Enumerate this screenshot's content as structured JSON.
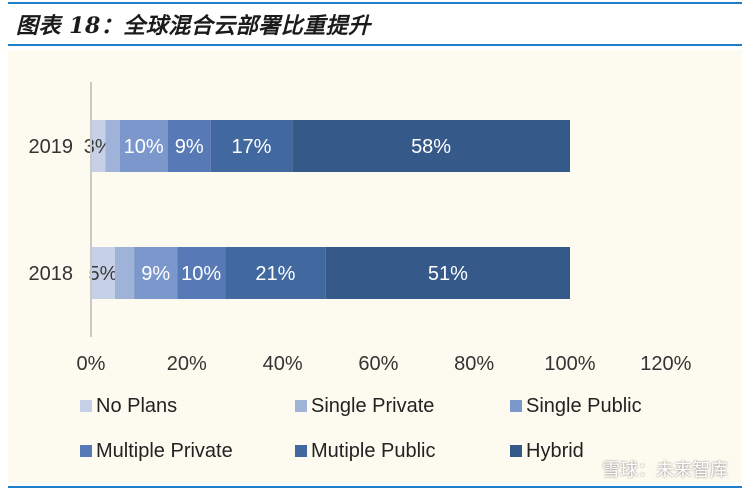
{
  "header": {
    "title": "图表 18：全球混合云部署比重提升"
  },
  "colors": {
    "accent": "#1f7fc8",
    "background": "#fdfbef",
    "axis": "#c8c8c8",
    "series": [
      "#c6d0e6",
      "#9fb2d8",
      "#7b97cc",
      "#5779b6",
      "#42699f",
      "#355a8a"
    ]
  },
  "chart_data": {
    "type": "bar",
    "orientation": "horizontal",
    "stacked": true,
    "title": "",
    "xlabel": "",
    "ylabel": "",
    "categories": [
      "2019",
      "2018"
    ],
    "series": [
      {
        "name": "No Plans",
        "values": [
          3,
          5
        ]
      },
      {
        "name": "Single Private",
        "values": [
          3,
          4
        ]
      },
      {
        "name": "Single Public",
        "values": [
          10,
          9
        ]
      },
      {
        "name": "Multiple Private",
        "values": [
          9,
          10
        ]
      },
      {
        "name": "Mutiple Public",
        "values": [
          17,
          21
        ]
      },
      {
        "name": "Hybrid",
        "values": [
          58,
          51
        ]
      }
    ],
    "data_labels": [
      [
        "3%",
        "",
        "10%",
        "9%",
        "17%",
        "58%"
      ],
      [
        "5%",
        "",
        "9%",
        "10%",
        "21%",
        "51%"
      ]
    ],
    "x_ticks": [
      "0%",
      "20%",
      "40%",
      "60%",
      "80%",
      "100%",
      "120%"
    ],
    "xlim": [
      0,
      120
    ],
    "grid": false,
    "legend_position": "bottom"
  },
  "watermark": "雪球：未来智库"
}
